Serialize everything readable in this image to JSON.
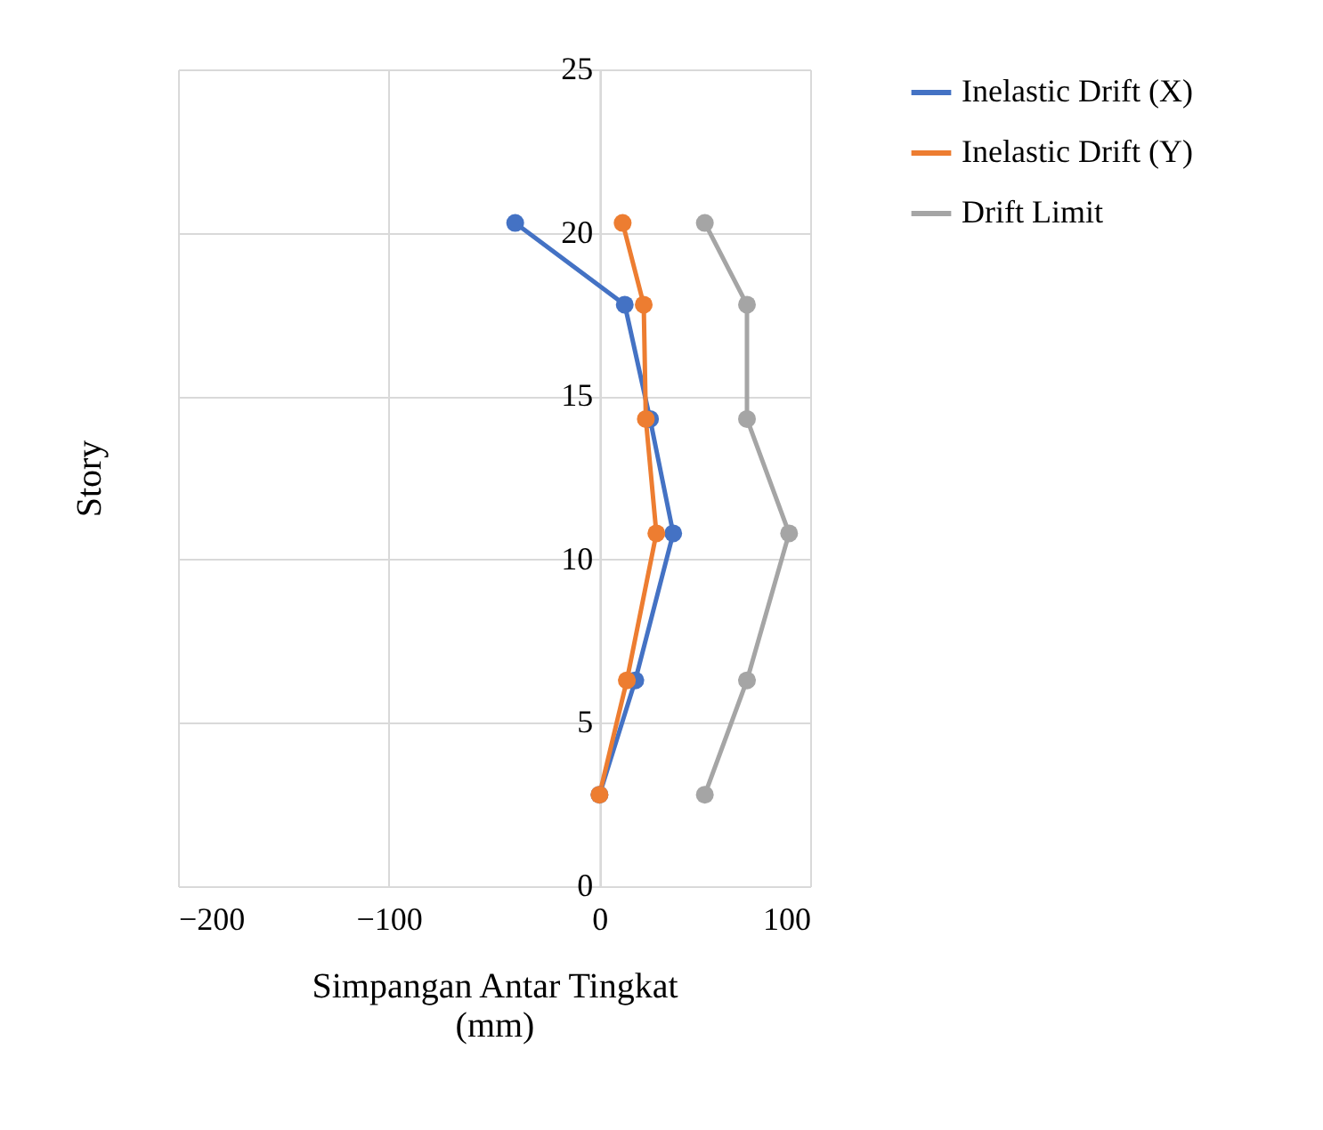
{
  "chart_data": {
    "type": "line",
    "xlabel": "Simpangan Antar Tingkat (mm)",
    "ylabel": "Story",
    "series": [
      {
        "name": "Inelastic Drift (X)",
        "color": "#4472c4",
        "x": [
          -40,
          12,
          24,
          35,
          17,
          0
        ],
        "values": [
          20.3,
          17.8,
          14.3,
          10.8,
          6.3,
          2.8
        ]
      },
      {
        "name": "Inelastic Drift (Y)",
        "color": "#ed7d31",
        "x": [
          11,
          21,
          22,
          27,
          13,
          0
        ],
        "values": [
          20.3,
          17.8,
          14.3,
          10.8,
          6.3,
          2.8
        ]
      },
      {
        "name": "Drift Limit",
        "color": "#a5a5a5",
        "x": [
          50,
          70,
          70,
          90,
          70,
          50
        ],
        "values": [
          20.3,
          17.8,
          14.3,
          10.8,
          6.3,
          2.8
        ]
      }
    ],
    "xlim": [
      -200,
      100
    ],
    "xticks": [
      -200,
      -100,
      0,
      100
    ],
    "ylim": [
      0,
      25
    ],
    "yticks": [
      0,
      5,
      10,
      15,
      20,
      25
    ],
    "grid": true,
    "legend": "right",
    "marker": "circle",
    "line_style": "solid"
  }
}
